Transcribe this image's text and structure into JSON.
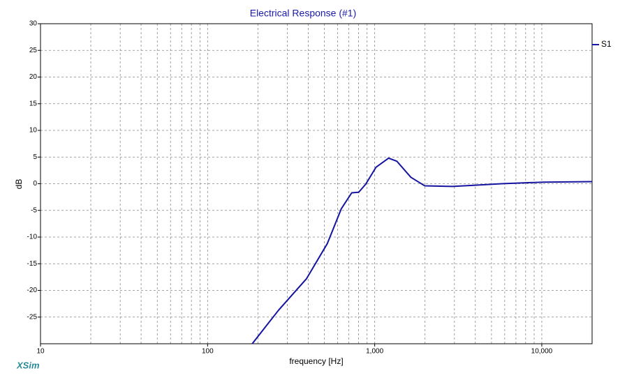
{
  "chart_data": {
    "type": "line",
    "title": "Electrical Response (#1)",
    "x_label": "frequency [Hz]",
    "y_label": "dB",
    "brand": "XSim",
    "x_scale": "log",
    "grid": true,
    "legend_position": "right",
    "xlim": [
      10,
      20000
    ],
    "ylim": [
      -30,
      30
    ],
    "xticks": [
      10,
      100,
      {
        "value": 1000,
        "label": "1,000"
      },
      {
        "value": 10000,
        "label": "10,000"
      }
    ],
    "yticks": [
      -25,
      -20,
      -15,
      -10,
      -5,
      0,
      5,
      10,
      15,
      20,
      25,
      30
    ],
    "series": [
      {
        "name": "S1",
        "color": "#1414a0",
        "x": [
          185,
          266,
          391,
          521,
          631,
          729,
          802,
          883,
          1019,
          1211,
          1359,
          1647,
          1995,
          2929,
          3911,
          5733,
          10190,
          20000
        ],
        "values": [
          -30,
          -23.7,
          -17.8,
          -11.2,
          -4.7,
          -1.7,
          -1.6,
          -0.1,
          3.1,
          4.8,
          4.2,
          1.2,
          -0.4,
          -0.5,
          -0.3,
          0,
          0.3,
          0.4
        ]
      }
    ]
  }
}
